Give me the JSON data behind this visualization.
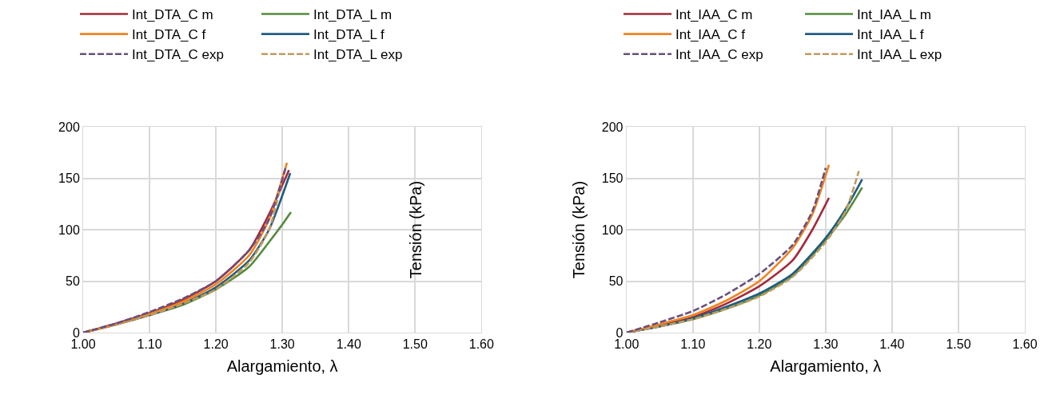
{
  "chart_data": [
    {
      "type": "line",
      "xlabel": "Alargamiento, λ",
      "ylabel": "Tensión (kPa)",
      "xlim": [
        1.0,
        1.6
      ],
      "xticks": [
        {
          "value": 1.0,
          "label": "1.00"
        },
        {
          "value": 1.1,
          "label": "1.10"
        },
        {
          "value": 1.2,
          "label": "1.20"
        },
        {
          "value": 1.3,
          "label": "1.30"
        },
        {
          "value": 1.4,
          "label": "1.40"
        },
        {
          "value": 1.5,
          "label": "1.50"
        },
        {
          "value": 1.6,
          "label": "1.60"
        }
      ],
      "ylim": [
        0,
        200
      ],
      "yticks": [
        0,
        50,
        100,
        150,
        200
      ],
      "grid": true,
      "legend": "top",
      "series": [
        {
          "name": "Int_DTA_C exp",
          "color": "#67507f",
          "line_style": "dashed",
          "x": [
            1.0,
            1.05,
            1.1,
            1.15,
            1.2,
            1.25,
            1.28,
            1.305
          ],
          "values": [
            0,
            9,
            20,
            33,
            50,
            80,
            110,
            160
          ]
        },
        {
          "name": "Int_DTA_L exp",
          "color": "#c39a5f",
          "line_style": "dashed",
          "x": [
            1.0,
            1.05,
            1.1,
            1.15,
            1.2,
            1.25,
            1.28,
            1.3
          ],
          "values": [
            0,
            8,
            17,
            28,
            42,
            68,
            100,
            150
          ]
        },
        {
          "name": "Int_DTA_C f",
          "color": "#f0821e",
          "line_style": "solid",
          "x": [
            1.0,
            1.05,
            1.1,
            1.15,
            1.2,
            1.25,
            1.28,
            1.307
          ],
          "values": [
            0,
            8,
            18,
            30,
            47,
            75,
            110,
            165
          ]
        },
        {
          "name": "Int_DTA_L f",
          "color": "#1f5c82",
          "line_style": "solid",
          "x": [
            1.0,
            1.05,
            1.1,
            1.15,
            1.2,
            1.25,
            1.28,
            1.312
          ],
          "values": [
            0,
            8,
            17,
            28,
            44,
            70,
            100,
            155
          ]
        },
        {
          "name": "Int_DTA_C m",
          "color": "#a3293a",
          "line_style": "solid",
          "x": [
            1.0,
            1.05,
            1.1,
            1.15,
            1.2,
            1.25,
            1.28,
            1.31
          ],
          "values": [
            0,
            9,
            19,
            32,
            50,
            80,
            115,
            158
          ]
        },
        {
          "name": "Int_DTA_L m",
          "color": "#538b3d",
          "line_style": "solid",
          "x": [
            1.0,
            1.05,
            1.1,
            1.15,
            1.2,
            1.25,
            1.28,
            1.3,
            1.313
          ],
          "values": [
            0,
            8,
            17,
            27,
            42,
            64,
            88,
            105,
            117
          ]
        }
      ]
    },
    {
      "type": "line",
      "xlabel": "Alargamiento, λ",
      "ylabel": "Tensión (kPa)",
      "xlim": [
        1.0,
        1.6
      ],
      "xticks": [
        {
          "value": 1.0,
          "label": "1.00"
        },
        {
          "value": 1.1,
          "label": "1.10"
        },
        {
          "value": 1.2,
          "label": "1.20"
        },
        {
          "value": 1.3,
          "label": "1.30"
        },
        {
          "value": 1.4,
          "label": "1.40"
        },
        {
          "value": 1.5,
          "label": "1.50"
        },
        {
          "value": 1.6,
          "label": "1.60"
        }
      ],
      "ylim": [
        0,
        200
      ],
      "yticks": [
        0,
        50,
        100,
        150,
        200
      ],
      "grid": true,
      "legend": "top",
      "series": [
        {
          "name": "Int_IAA_C exp",
          "color": "#67507f",
          "line_style": "dashed",
          "x": [
            1.0,
            1.05,
            1.1,
            1.15,
            1.2,
            1.25,
            1.28,
            1.3
          ],
          "values": [
            0,
            10,
            21,
            37,
            57,
            85,
            118,
            160
          ]
        },
        {
          "name": "Int_IAA_L exp",
          "color": "#c39a5f",
          "line_style": "dashed",
          "x": [
            1.0,
            1.05,
            1.1,
            1.15,
            1.2,
            1.25,
            1.3,
            1.33,
            1.35
          ],
          "values": [
            0,
            6,
            13,
            23,
            35,
            54,
            88,
            118,
            157
          ]
        },
        {
          "name": "Int_IAA_C f",
          "color": "#f0821e",
          "line_style": "solid",
          "x": [
            1.0,
            1.05,
            1.1,
            1.15,
            1.2,
            1.25,
            1.28,
            1.305
          ],
          "values": [
            0,
            8,
            17,
            31,
            50,
            82,
            115,
            163
          ]
        },
        {
          "name": "Int_IAA_L f",
          "color": "#1f5c82",
          "line_style": "solid",
          "x": [
            1.0,
            1.05,
            1.1,
            1.15,
            1.2,
            1.25,
            1.3,
            1.33,
            1.355
          ],
          "values": [
            0,
            6,
            14,
            25,
            38,
            57,
            92,
            120,
            149
          ]
        },
        {
          "name": "Int_IAA_C m",
          "color": "#a3293a",
          "line_style": "solid",
          "x": [
            1.0,
            1.05,
            1.1,
            1.15,
            1.2,
            1.25,
            1.28,
            1.305
          ],
          "values": [
            0,
            7,
            15,
            28,
            45,
            70,
            100,
            131
          ]
        },
        {
          "name": "Int_IAA_L m",
          "color": "#538b3d",
          "line_style": "solid",
          "x": [
            1.0,
            1.05,
            1.1,
            1.15,
            1.2,
            1.25,
            1.3,
            1.33,
            1.355
          ],
          "values": [
            0,
            6,
            13,
            23,
            36,
            55,
            90,
            115,
            141
          ]
        }
      ]
    }
  ]
}
